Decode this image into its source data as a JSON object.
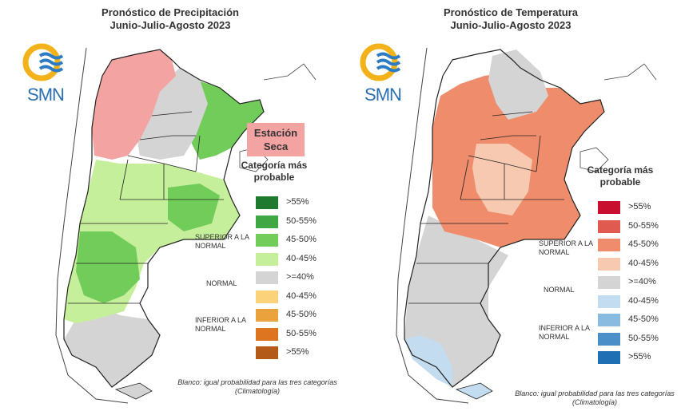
{
  "precip": {
    "title_line1": "Pronóstico de Precipitación",
    "title_line2": "Junio-Julio-Agosto 2023",
    "logo_text": "SMN",
    "callout": "Estación Seca",
    "legend_title": "Categoría más probable",
    "groups": {
      "superior": "SUPERIOR A LA NORMAL",
      "normal": "NORMAL",
      "inferior": "INFERIOR A LA NORMAL"
    },
    "legend": [
      {
        "label": ">55%",
        "color": "#1e7a2e"
      },
      {
        "label": "50-55%",
        "color": "#3fa844"
      },
      {
        "label": "45-50%",
        "color": "#72cc5a"
      },
      {
        "label": "40-45%",
        "color": "#c5ef9a"
      },
      {
        "label": ">=40%",
        "color": "#d4d4d4"
      },
      {
        "label": "40-45%",
        "color": "#fbd27a"
      },
      {
        "label": "45-50%",
        "color": "#eaa23c"
      },
      {
        "label": "50-55%",
        "color": "#dc7420"
      },
      {
        "label": ">55%",
        "color": "#b45a18"
      }
    ],
    "note": "Blanco: igual probabilidad para las tres categorías (Climatología)"
  },
  "temp": {
    "title_line1": "Pronóstico de Temperatura",
    "title_line2": "Junio-Julio-Agosto 2023",
    "logo_text": "SMN",
    "legend_title": "Categoría más probable",
    "groups": {
      "superior": "SUPERIOR A LA NORMAL",
      "normal": "NORMAL",
      "inferior": "INFERIOR A LA NORMAL"
    },
    "legend": [
      {
        "label": ">55%",
        "color": "#c8102e"
      },
      {
        "label": "50-55%",
        "color": "#e05a50"
      },
      {
        "label": "45-50%",
        "color": "#ee8c6c"
      },
      {
        "label": "40-45%",
        "color": "#f7c9b0"
      },
      {
        "label": ">=40%",
        "color": "#d4d4d4"
      },
      {
        "label": "40-45%",
        "color": "#c4dcef"
      },
      {
        "label": "45-50%",
        "color": "#89bbe0"
      },
      {
        "label": "50-55%",
        "color": "#4a8fc8"
      },
      {
        "label": ">55%",
        "color": "#1f6fb4"
      }
    ],
    "note": "Blanco: igual probabilidad para las tres categorías (Climatología)"
  },
  "colors": {
    "logo_sun": "#f3b21a",
    "logo_wave": "#2b7cc4",
    "borders": "#222222"
  }
}
